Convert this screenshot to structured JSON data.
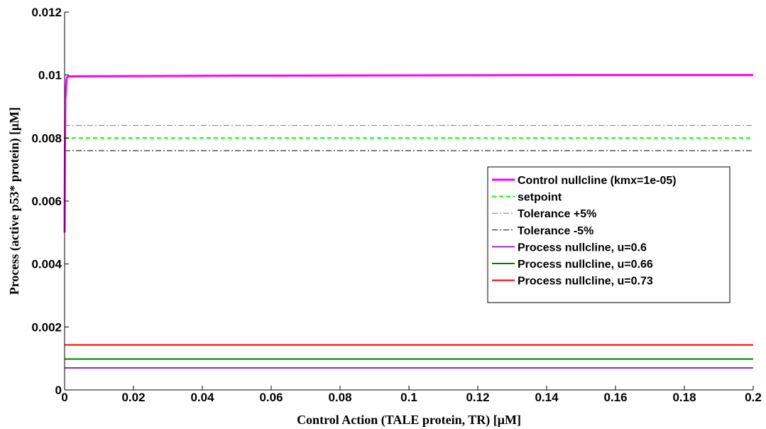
{
  "chart_data": {
    "type": "line",
    "title": "",
    "xlabel": "Control Action (TALE protein, TR) [μM]",
    "ylabel": "Process (active p53* protein) [μM]",
    "xlim": [
      0,
      0.2
    ],
    "ylim": [
      0,
      0.012
    ],
    "x_ticks": [
      "0",
      "0.02",
      "0.04",
      "0.06",
      "0.08",
      "0.1",
      "0.12",
      "0.14",
      "0.16",
      "0.18",
      "0.2"
    ],
    "x_tick_values": [
      0,
      0.02,
      0.04,
      0.06,
      0.08,
      0.1,
      0.12,
      0.14,
      0.16,
      0.18,
      0.2
    ],
    "y_ticks": [
      "0",
      "0.002",
      "0.004",
      "0.006",
      "0.008",
      "0.01",
      "0.012"
    ],
    "y_tick_values": [
      0,
      0.002,
      0.004,
      0.006,
      0.008,
      0.01,
      0.012
    ],
    "grid": false,
    "legend_position": "right",
    "series": [
      {
        "name": "Control nullcline (kmx=1e-05)",
        "color": "#ff00ff",
        "style": "solid",
        "width": 3,
        "x": [
          0,
          0.0001,
          0.0002,
          0.0004,
          0.0006,
          0.001,
          0.05,
          0.1,
          0.15,
          0.2
        ],
        "y": [
          0.005,
          0.0075,
          0.0092,
          0.0096,
          0.0099,
          0.00996,
          0.00998,
          0.00999,
          0.01,
          0.01
        ]
      },
      {
        "name": "setpoint",
        "color": "#00ff00",
        "style": "dashed",
        "width": 2,
        "x": [
          0,
          0.2
        ],
        "y": [
          0.008,
          0.008
        ]
      },
      {
        "name": "Tolerance +5%",
        "color": "#9a6a8a",
        "style": "dashdot",
        "width": 1,
        "x": [
          0,
          0.2
        ],
        "y": [
          0.0084,
          0.0084
        ]
      },
      {
        "name": "Tolerance -5%",
        "color": "#000000",
        "style": "dashdot",
        "width": 1,
        "x": [
          0,
          0.2
        ],
        "y": [
          0.0076,
          0.0076
        ]
      },
      {
        "name": "Process nullcline, u=0.6",
        "color": "#8a2be2",
        "style": "solid",
        "width": 2,
        "x": [
          0,
          0.2
        ],
        "y": [
          0.0007,
          0.0007
        ]
      },
      {
        "name": "Process nullcline, u=0.66",
        "color": "#007a00",
        "style": "solid",
        "width": 2,
        "x": [
          0,
          0.2
        ],
        "y": [
          0.00098,
          0.00098
        ]
      },
      {
        "name": "Process nullcline, u=0.73",
        "color": "#ff0000",
        "style": "solid",
        "width": 2,
        "x": [
          0,
          0.2
        ],
        "y": [
          0.00143,
          0.00143
        ]
      }
    ]
  }
}
